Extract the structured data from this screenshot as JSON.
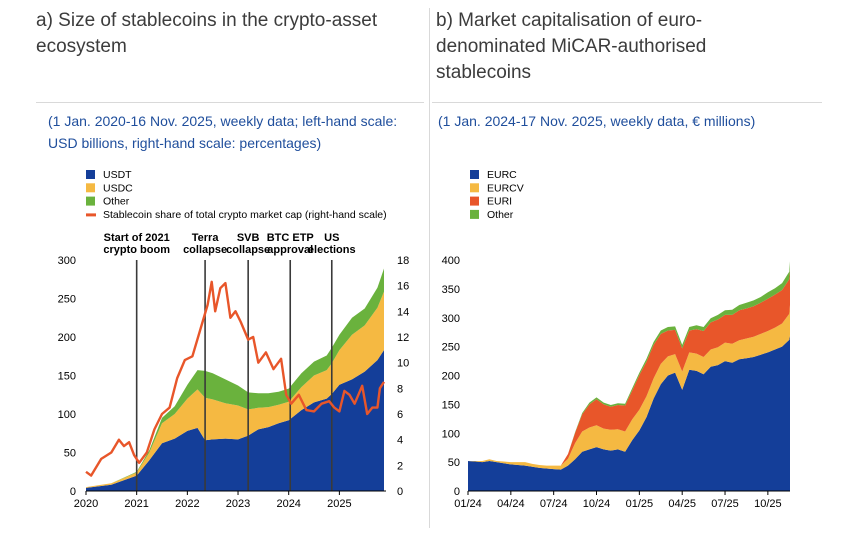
{
  "panel_a": {
    "title": "a) Size of stablecoins in the crypto-asset ecosystem",
    "subtitle": "(1 Jan. 2020-16 Nov. 2025, weekly data; left-hand scale: USD billions, right-hand scale: percentages)"
  },
  "panel_b": {
    "title": "b) Market capitalisation of euro-denominated MiCAR-authorised stablecoins",
    "subtitle": "(1 Jan. 2024-17 Nov. 2025, weekly data, € millions)"
  },
  "colors": {
    "usdt": "#143e99",
    "usdc": "#f5b942",
    "other": "#6ab23d",
    "share": "#e8562a",
    "eurc": "#143e99",
    "eurcv": "#f5b942",
    "euri": "#e8562a",
    "other_b": "#6ab23d"
  },
  "chart_data": [
    {
      "type": "area",
      "stacked": true,
      "x": [
        2020.0,
        2020.5,
        2021.0,
        2021.25,
        2021.5,
        2021.75,
        2022.0,
        2022.2,
        2022.35,
        2022.5,
        2022.75,
        2023.0,
        2023.2,
        2023.4,
        2023.6,
        2023.8,
        2024.0,
        2024.25,
        2024.5,
        2024.75,
        2024.85,
        2025.0,
        2025.25,
        2025.5,
        2025.75,
        2025.88
      ],
      "series": [
        {
          "name": "USDT",
          "values": [
            4,
            8,
            20,
            40,
            62,
            68,
            78,
            82,
            66,
            67,
            68,
            67,
            72,
            80,
            83,
            88,
            92,
            105,
            115,
            120,
            126,
            138,
            145,
            155,
            170,
            183
          ]
        },
        {
          "name": "USDC",
          "values": [
            1,
            2,
            4,
            10,
            26,
            32,
            42,
            50,
            55,
            52,
            46,
            44,
            34,
            28,
            26,
            24,
            24,
            30,
            35,
            37,
            40,
            45,
            58,
            60,
            68,
            76
          ]
        },
        {
          "name": "Other",
          "values": [
            0,
            0,
            1,
            3,
            7,
            10,
            18,
            25,
            35,
            34,
            31,
            26,
            22,
            19,
            18,
            17,
            17,
            18,
            18,
            19,
            20,
            20,
            22,
            22,
            26,
            30
          ]
        }
      ],
      "share_series": {
        "name": "Stablecoin share of total crypto market cap (right-hand scale)",
        "x": [
          2020.0,
          2020.1,
          2020.3,
          2020.5,
          2020.65,
          2020.75,
          2020.85,
          2020.95,
          2021.05,
          2021.2,
          2021.35,
          2021.5,
          2021.65,
          2021.8,
          2021.95,
          2022.1,
          2022.25,
          2022.4,
          2022.48,
          2022.55,
          2022.65,
          2022.75,
          2022.85,
          2022.95,
          2023.05,
          2023.2,
          2023.3,
          2023.4,
          2023.55,
          2023.7,
          2023.85,
          2023.95,
          2024.05,
          2024.2,
          2024.35,
          2024.5,
          2024.65,
          2024.8,
          2024.9,
          2025.0,
          2025.1,
          2025.2,
          2025.3,
          2025.45,
          2025.55,
          2025.65,
          2025.75,
          2025.8,
          2025.88
        ],
        "values": [
          1.5,
          1.2,
          2.5,
          3.0,
          4.0,
          3.5,
          3.8,
          2.8,
          2.2,
          3.0,
          4.8,
          6.0,
          6.5,
          8.8,
          10.2,
          10.5,
          12.5,
          14.5,
          16.3,
          14.0,
          15.8,
          16.2,
          13.5,
          14.0,
          13.2,
          11.8,
          12.0,
          10.0,
          10.8,
          9.5,
          10.3,
          7.5,
          6.8,
          7.5,
          6.3,
          6.2,
          6.8,
          7.0,
          6.5,
          6.2,
          7.8,
          7.5,
          6.8,
          8.2,
          6.0,
          6.5,
          6.5,
          8.0,
          8.5
        ]
      },
      "events": [
        {
          "x": 2021.0,
          "label": [
            "Start of 2021",
            "crypto boom"
          ]
        },
        {
          "x": 2022.35,
          "label": [
            "Terra",
            "collapse"
          ]
        },
        {
          "x": 2023.2,
          "label": [
            "SVB",
            "collapse"
          ]
        },
        {
          "x": 2024.03,
          "label": [
            "BTC ETP",
            "approval"
          ]
        },
        {
          "x": 2024.85,
          "label": [
            "US",
            "elections"
          ]
        }
      ],
      "xticks": [
        "2020",
        "2021",
        "2022",
        "2023",
        "2024",
        "2025"
      ],
      "xlim": [
        2020.0,
        2025.92
      ],
      "ylim": [
        0,
        300
      ],
      "yticks": [
        0,
        50,
        100,
        150,
        200,
        250,
        300
      ],
      "y2lim": [
        0,
        18
      ],
      "y2ticks": [
        0,
        2,
        4,
        6,
        8,
        10,
        12,
        14,
        16,
        18
      ],
      "legend": [
        "USDT",
        "USDC",
        "Other",
        "Stablecoin share of total crypto market cap (right-hand scale)"
      ],
      "legend_position": "top-left"
    },
    {
      "type": "area",
      "stacked": true,
      "x": [
        0,
        0.5,
        1,
        1.5,
        2,
        2.5,
        3,
        3.5,
        4,
        4.5,
        5,
        5.5,
        6,
        6.5,
        7,
        7.5,
        8,
        8.5,
        9,
        9.5,
        10,
        10.5,
        11,
        11.5,
        12,
        12.5,
        13,
        13.5,
        14,
        14.5,
        15,
        15.5,
        16,
        16.5,
        17,
        17.5,
        18,
        18.5,
        19,
        19.5,
        20,
        20.5,
        21,
        21.5,
        22,
        22.5,
        22.55
      ],
      "series": [
        {
          "name": "EURC",
          "values": [
            52,
            51,
            50,
            52,
            50,
            48,
            46,
            45,
            44,
            42,
            40,
            39,
            38,
            37,
            44,
            55,
            68,
            72,
            76,
            72,
            70,
            72,
            68,
            88,
            105,
            128,
            160,
            185,
            200,
            205,
            175,
            210,
            208,
            202,
            215,
            218,
            225,
            222,
            228,
            230,
            232,
            236,
            240,
            245,
            250,
            262,
            270
          ]
        },
        {
          "name": "EURCV",
          "values": [
            0,
            1,
            2,
            3,
            2,
            3,
            4,
            5,
            6,
            5,
            5,
            5,
            6,
            7,
            12,
            28,
            35,
            38,
            38,
            36,
            36,
            35,
            35,
            36,
            36,
            36,
            35,
            35,
            33,
            32,
            32,
            30,
            30,
            30,
            30,
            31,
            32,
            33,
            33,
            34,
            35,
            36,
            37,
            38,
            40,
            45,
            52
          ]
        },
        {
          "name": "EURI",
          "values": [
            0,
            0,
            0,
            0,
            0,
            0,
            0,
            0,
            0,
            0,
            0,
            0,
            0,
            0,
            8,
            18,
            30,
            40,
            45,
            42,
            40,
            42,
            45,
            50,
            60,
            60,
            58,
            52,
            45,
            42,
            40,
            38,
            42,
            45,
            47,
            48,
            48,
            50,
            52,
            52,
            53,
            54,
            56,
            57,
            58,
            60,
            62
          ]
        },
        {
          "name": "Other",
          "values": [
            0,
            0,
            0,
            0,
            0,
            0,
            0,
            0,
            0,
            0,
            0,
            0,
            0,
            0,
            0,
            1,
            2,
            3,
            3,
            3,
            3,
            3,
            3,
            4,
            4,
            5,
            5,
            6,
            6,
            6,
            6,
            6,
            7,
            7,
            7,
            8,
            8,
            9,
            9,
            10,
            10,
            10,
            11,
            11,
            12,
            13,
            14
          ]
        }
      ],
      "xticks": [
        "01/24",
        "04/24",
        "07/24",
        "10/24",
        "01/25",
        "04/25",
        "07/25",
        "10/25"
      ],
      "xlim": [
        0,
        22.55
      ],
      "ylim": [
        0,
        400
      ],
      "yticks": [
        0,
        50,
        100,
        150,
        200,
        250,
        300,
        350,
        400
      ],
      "legend": [
        "EURC",
        "EURCV",
        "EURI",
        "Other"
      ],
      "legend_position": "top-left"
    }
  ]
}
